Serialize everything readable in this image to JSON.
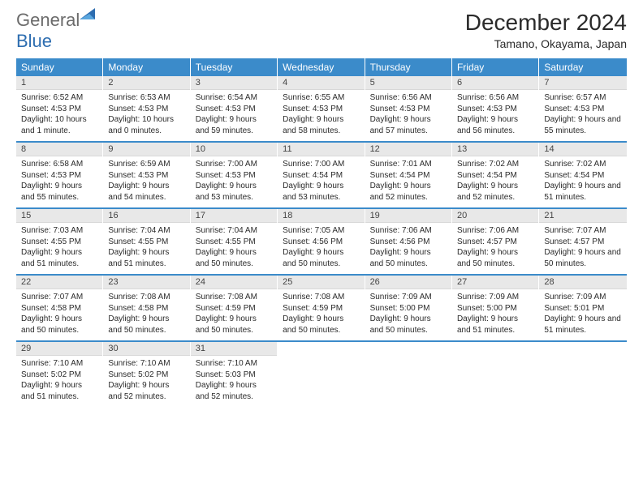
{
  "brand": {
    "part1": "General",
    "part2": "Blue"
  },
  "title": "December 2024",
  "location": "Tamano, Okayama, Japan",
  "colors": {
    "header_bg": "#3b8bca",
    "header_text": "#ffffff",
    "daynum_bg": "#e8e8e8",
    "border": "#3b8bca",
    "logo_gray": "#6b6b6b",
    "logo_blue": "#2d6db0"
  },
  "weekdays": [
    "Sunday",
    "Monday",
    "Tuesday",
    "Wednesday",
    "Thursday",
    "Friday",
    "Saturday"
  ],
  "weeks": [
    [
      {
        "n": "1",
        "sunrise": "Sunrise: 6:52 AM",
        "sunset": "Sunset: 4:53 PM",
        "daylight": "Daylight: 10 hours and 1 minute."
      },
      {
        "n": "2",
        "sunrise": "Sunrise: 6:53 AM",
        "sunset": "Sunset: 4:53 PM",
        "daylight": "Daylight: 10 hours and 0 minutes."
      },
      {
        "n": "3",
        "sunrise": "Sunrise: 6:54 AM",
        "sunset": "Sunset: 4:53 PM",
        "daylight": "Daylight: 9 hours and 59 minutes."
      },
      {
        "n": "4",
        "sunrise": "Sunrise: 6:55 AM",
        "sunset": "Sunset: 4:53 PM",
        "daylight": "Daylight: 9 hours and 58 minutes."
      },
      {
        "n": "5",
        "sunrise": "Sunrise: 6:56 AM",
        "sunset": "Sunset: 4:53 PM",
        "daylight": "Daylight: 9 hours and 57 minutes."
      },
      {
        "n": "6",
        "sunrise": "Sunrise: 6:56 AM",
        "sunset": "Sunset: 4:53 PM",
        "daylight": "Daylight: 9 hours and 56 minutes."
      },
      {
        "n": "7",
        "sunrise": "Sunrise: 6:57 AM",
        "sunset": "Sunset: 4:53 PM",
        "daylight": "Daylight: 9 hours and 55 minutes."
      }
    ],
    [
      {
        "n": "8",
        "sunrise": "Sunrise: 6:58 AM",
        "sunset": "Sunset: 4:53 PM",
        "daylight": "Daylight: 9 hours and 55 minutes."
      },
      {
        "n": "9",
        "sunrise": "Sunrise: 6:59 AM",
        "sunset": "Sunset: 4:53 PM",
        "daylight": "Daylight: 9 hours and 54 minutes."
      },
      {
        "n": "10",
        "sunrise": "Sunrise: 7:00 AM",
        "sunset": "Sunset: 4:53 PM",
        "daylight": "Daylight: 9 hours and 53 minutes."
      },
      {
        "n": "11",
        "sunrise": "Sunrise: 7:00 AM",
        "sunset": "Sunset: 4:54 PM",
        "daylight": "Daylight: 9 hours and 53 minutes."
      },
      {
        "n": "12",
        "sunrise": "Sunrise: 7:01 AM",
        "sunset": "Sunset: 4:54 PM",
        "daylight": "Daylight: 9 hours and 52 minutes."
      },
      {
        "n": "13",
        "sunrise": "Sunrise: 7:02 AM",
        "sunset": "Sunset: 4:54 PM",
        "daylight": "Daylight: 9 hours and 52 minutes."
      },
      {
        "n": "14",
        "sunrise": "Sunrise: 7:02 AM",
        "sunset": "Sunset: 4:54 PM",
        "daylight": "Daylight: 9 hours and 51 minutes."
      }
    ],
    [
      {
        "n": "15",
        "sunrise": "Sunrise: 7:03 AM",
        "sunset": "Sunset: 4:55 PM",
        "daylight": "Daylight: 9 hours and 51 minutes."
      },
      {
        "n": "16",
        "sunrise": "Sunrise: 7:04 AM",
        "sunset": "Sunset: 4:55 PM",
        "daylight": "Daylight: 9 hours and 51 minutes."
      },
      {
        "n": "17",
        "sunrise": "Sunrise: 7:04 AM",
        "sunset": "Sunset: 4:55 PM",
        "daylight": "Daylight: 9 hours and 50 minutes."
      },
      {
        "n": "18",
        "sunrise": "Sunrise: 7:05 AM",
        "sunset": "Sunset: 4:56 PM",
        "daylight": "Daylight: 9 hours and 50 minutes."
      },
      {
        "n": "19",
        "sunrise": "Sunrise: 7:06 AM",
        "sunset": "Sunset: 4:56 PM",
        "daylight": "Daylight: 9 hours and 50 minutes."
      },
      {
        "n": "20",
        "sunrise": "Sunrise: 7:06 AM",
        "sunset": "Sunset: 4:57 PM",
        "daylight": "Daylight: 9 hours and 50 minutes."
      },
      {
        "n": "21",
        "sunrise": "Sunrise: 7:07 AM",
        "sunset": "Sunset: 4:57 PM",
        "daylight": "Daylight: 9 hours and 50 minutes."
      }
    ],
    [
      {
        "n": "22",
        "sunrise": "Sunrise: 7:07 AM",
        "sunset": "Sunset: 4:58 PM",
        "daylight": "Daylight: 9 hours and 50 minutes."
      },
      {
        "n": "23",
        "sunrise": "Sunrise: 7:08 AM",
        "sunset": "Sunset: 4:58 PM",
        "daylight": "Daylight: 9 hours and 50 minutes."
      },
      {
        "n": "24",
        "sunrise": "Sunrise: 7:08 AM",
        "sunset": "Sunset: 4:59 PM",
        "daylight": "Daylight: 9 hours and 50 minutes."
      },
      {
        "n": "25",
        "sunrise": "Sunrise: 7:08 AM",
        "sunset": "Sunset: 4:59 PM",
        "daylight": "Daylight: 9 hours and 50 minutes."
      },
      {
        "n": "26",
        "sunrise": "Sunrise: 7:09 AM",
        "sunset": "Sunset: 5:00 PM",
        "daylight": "Daylight: 9 hours and 50 minutes."
      },
      {
        "n": "27",
        "sunrise": "Sunrise: 7:09 AM",
        "sunset": "Sunset: 5:00 PM",
        "daylight": "Daylight: 9 hours and 51 minutes."
      },
      {
        "n": "28",
        "sunrise": "Sunrise: 7:09 AM",
        "sunset": "Sunset: 5:01 PM",
        "daylight": "Daylight: 9 hours and 51 minutes."
      }
    ],
    [
      {
        "n": "29",
        "sunrise": "Sunrise: 7:10 AM",
        "sunset": "Sunset: 5:02 PM",
        "daylight": "Daylight: 9 hours and 51 minutes."
      },
      {
        "n": "30",
        "sunrise": "Sunrise: 7:10 AM",
        "sunset": "Sunset: 5:02 PM",
        "daylight": "Daylight: 9 hours and 52 minutes."
      },
      {
        "n": "31",
        "sunrise": "Sunrise: 7:10 AM",
        "sunset": "Sunset: 5:03 PM",
        "daylight": "Daylight: 9 hours and 52 minutes."
      },
      null,
      null,
      null,
      null
    ]
  ]
}
